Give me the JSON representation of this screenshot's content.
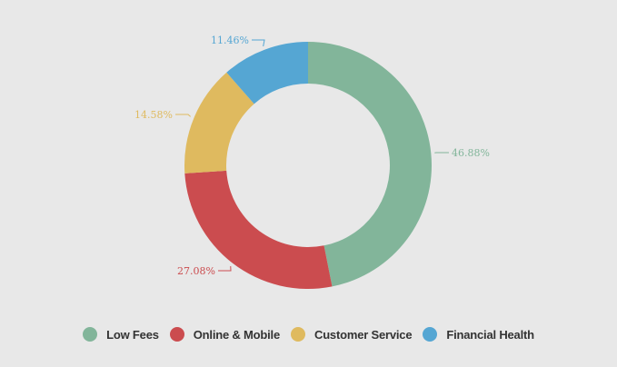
{
  "chart_data": {
    "type": "pie",
    "subtype": "donut",
    "title": "",
    "categories": [
      "Low Fees",
      "Online & Mobile",
      "Customer Service",
      "Financial Health"
    ],
    "values": [
      46.88,
      27.08,
      14.58,
      11.46
    ],
    "labels": [
      "46.88%",
      "27.08%",
      "14.58%",
      "11.46%"
    ],
    "colors": [
      "#82b59a",
      "#cb4c4f",
      "#dfba5f",
      "#55a6d3"
    ],
    "legend_position": "bottom",
    "start_angle": "12 o'clock, clockwise"
  },
  "legend": {
    "items": [
      {
        "label": "Low Fees",
        "color": "#82b59a"
      },
      {
        "label": "Online & Mobile",
        "color": "#cb4c4f"
      },
      {
        "label": "Customer Service",
        "color": "#dfba5f"
      },
      {
        "label": "Financial Health",
        "color": "#55a6d3"
      }
    ]
  }
}
